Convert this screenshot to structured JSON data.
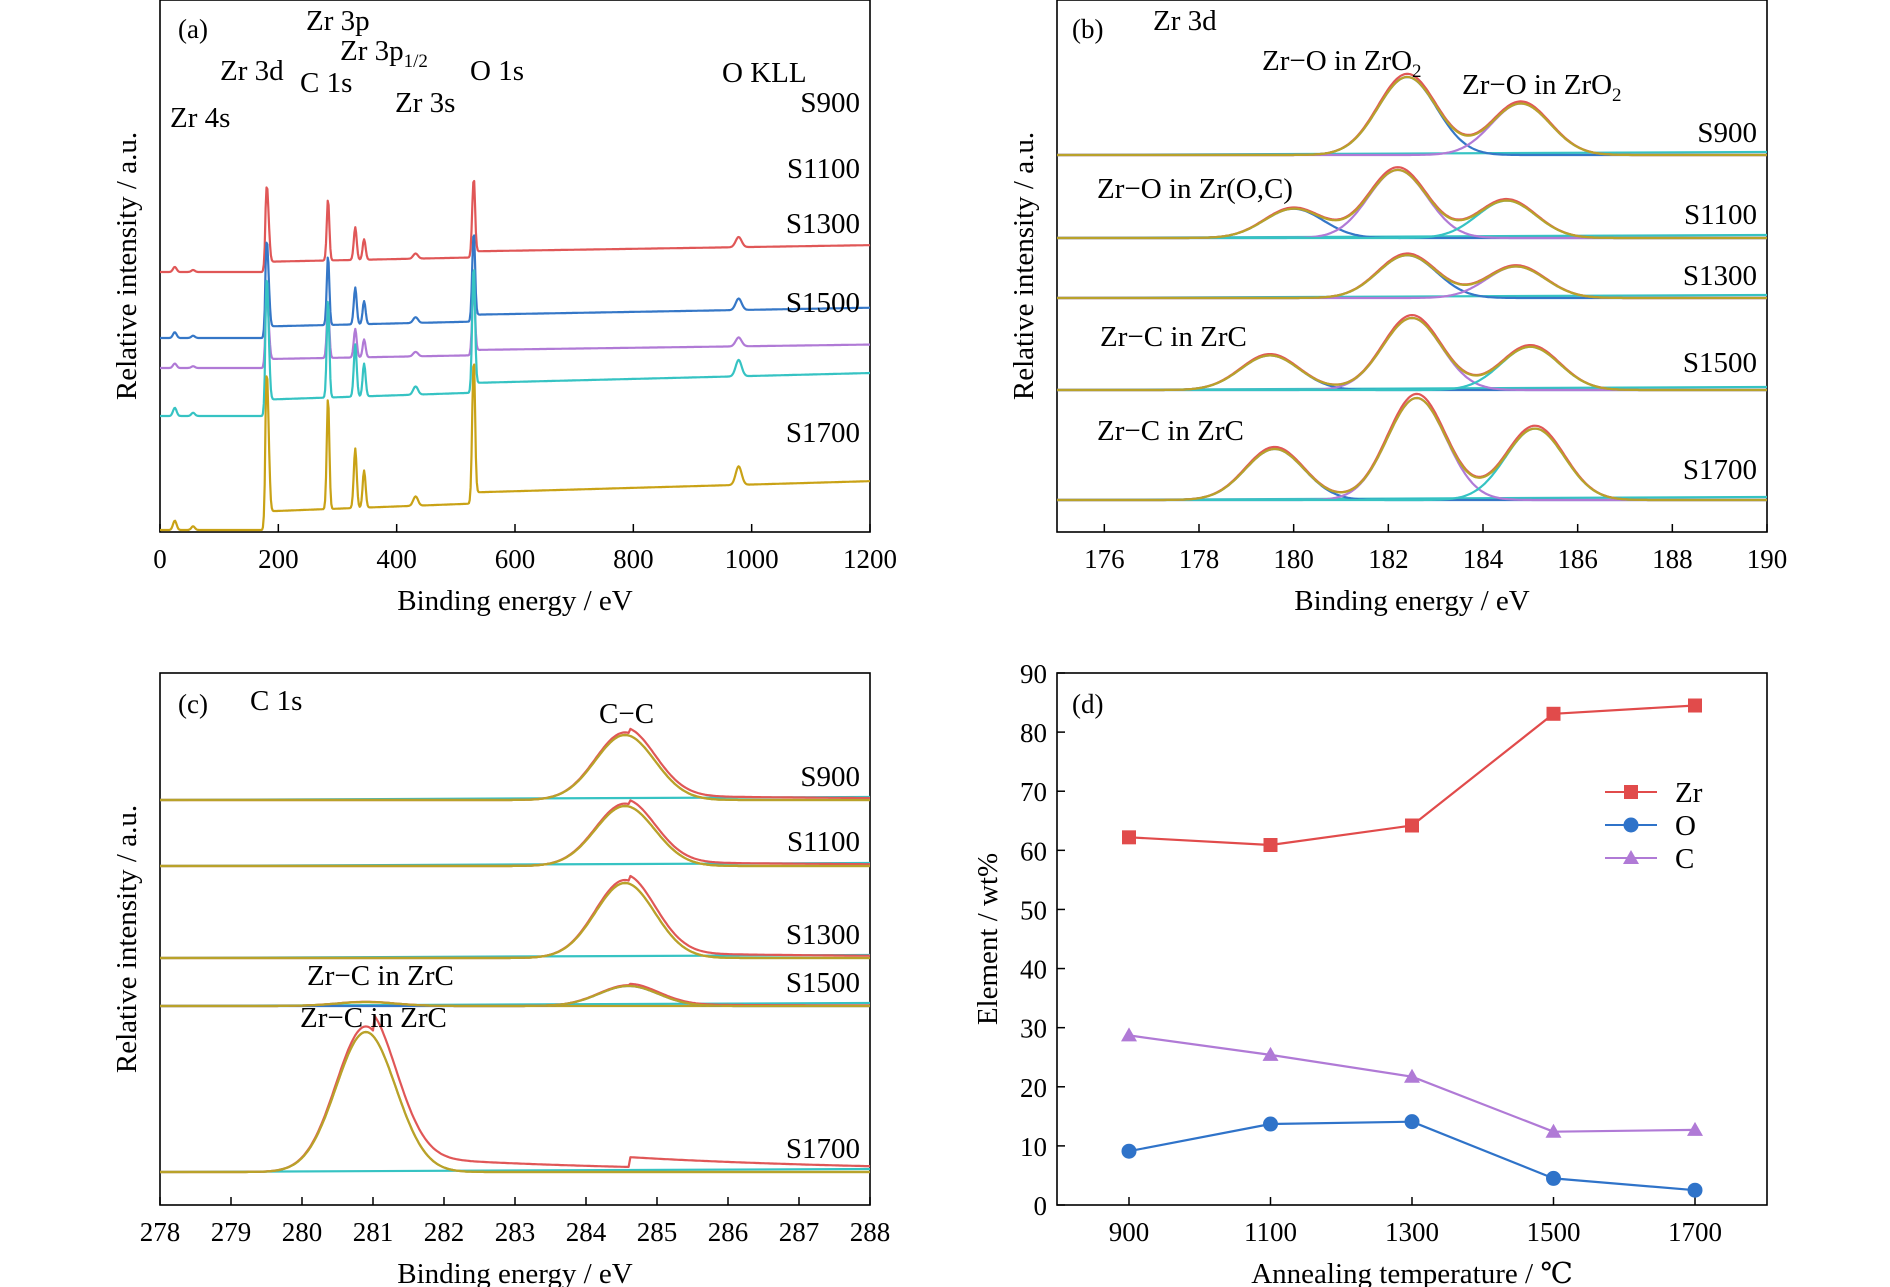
{
  "chart_data": [
    {
      "panel": "(a)",
      "type": "line",
      "xlabel": "Binding energy / eV",
      "ylabel": "Relative intensity / a.u.",
      "xlim": [
        0,
        1200
      ],
      "xticks": [
        "0",
        "200",
        "400",
        "600",
        "800",
        "1000",
        "1200"
      ],
      "peak_labels": [
        {
          "text": "Zr 4s",
          "x": 25
        },
        {
          "text": "Zr 3d",
          "x": 180
        },
        {
          "text": "C 1s",
          "x": 284
        },
        {
          "text": "Zr 3p",
          "x": 330
        },
        {
          "text": "Zr 3p",
          "sub": "1/2",
          "x": 345
        },
        {
          "text": "Zr 3s",
          "x": 432
        },
        {
          "text": "O 1s",
          "x": 530
        },
        {
          "text": "O KLL",
          "x": 978
        }
      ],
      "series": [
        {
          "name": "S900",
          "color": "#e05757",
          "offset": 0.86,
          "scale": 0.55
        },
        {
          "name": "S1100",
          "color": "#3577c7",
          "offset": 0.64,
          "scale": 0.62
        },
        {
          "name": "S1300",
          "color": "#b07ad6",
          "offset": 0.54,
          "scale": 0.48
        },
        {
          "name": "S1500",
          "color": "#36c3c3",
          "offset": 0.38,
          "scale": 0.88
        },
        {
          "name": "S1700",
          "color": "#c9a216",
          "offset": 0.0,
          "scale": 1.0
        }
      ],
      "peaks_eV": [
        25,
        56,
        180,
        183,
        284,
        330,
        345,
        432,
        530,
        978
      ]
    },
    {
      "panel": "(b)",
      "type": "line",
      "title": "Zr 3d",
      "xlabel": "Binding energy / eV",
      "ylabel": "Relative intensity / a.u.",
      "xlim": [
        175,
        190
      ],
      "xticks": [
        "176",
        "178",
        "180",
        "182",
        "184",
        "186",
        "188",
        "190"
      ],
      "series": [
        {
          "name": "S900",
          "components": [
            {
              "center": 182.4,
              "height": 1.0
            },
            {
              "center": 184.8,
              "height": 0.66
            }
          ]
        },
        {
          "name": "S1100",
          "components": [
            {
              "center": 180.0,
              "height": 0.43
            },
            {
              "center": 182.2,
              "height": 1.0
            },
            {
              "center": 184.5,
              "height": 0.55
            }
          ]
        },
        {
          "name": "S1300",
          "components": [
            {
              "center": 182.4,
              "height": 0.95
            },
            {
              "center": 184.7,
              "height": 0.7
            }
          ]
        },
        {
          "name": "S1500",
          "components": [
            {
              "center": 179.5,
              "height": 0.48
            },
            {
              "center": 182.5,
              "height": 1.0
            },
            {
              "center": 185.0,
              "height": 0.6
            }
          ]
        },
        {
          "name": "S1700",
          "components": [
            {
              "center": 179.6,
              "height": 0.5
            },
            {
              "center": 182.6,
              "height": 1.0
            },
            {
              "center": 185.1,
              "height": 0.7
            }
          ]
        }
      ],
      "annotations": [
        {
          "text": "Zr−O in ZrO",
          "sub": "2"
        },
        {
          "text": "Zr−O in ZrO",
          "sub": "2"
        },
        {
          "text": "Zr−O in Zr(O,C)"
        },
        {
          "text": "Zr−C in ZrC"
        },
        {
          "text": "Zr−C in ZrC"
        }
      ]
    },
    {
      "panel": "(c)",
      "type": "line",
      "title": "C 1s",
      "xlabel": "Binding energy / eV",
      "ylabel": "Relative intensity / a.u.",
      "xlim": [
        278,
        288
      ],
      "xticks": [
        "278",
        "279",
        "280",
        "281",
        "282",
        "283",
        "284",
        "285",
        "286",
        "287",
        "288"
      ],
      "series": [
        {
          "name": "S900",
          "components": [
            {
              "center": 284.55,
              "height": 1.0
            }
          ]
        },
        {
          "name": "S1100",
          "components": [
            {
              "center": 284.55,
              "height": 1.0
            }
          ]
        },
        {
          "name": "S1300",
          "components": [
            {
              "center": 284.55,
              "height": 1.0
            }
          ]
        },
        {
          "name": "S1500",
          "components": [
            {
              "center": 280.9,
              "height": 0.2
            },
            {
              "center": 284.6,
              "height": 1.0
            }
          ]
        },
        {
          "name": "S1700",
          "components": [
            {
              "center": 280.9,
              "height": 1.0
            }
          ]
        }
      ],
      "annotations": [
        {
          "text": "C−C"
        },
        {
          "text": "Zr−C in ZrC"
        },
        {
          "text": "Zr−C in ZrC"
        }
      ]
    },
    {
      "panel": "(d)",
      "type": "line",
      "xlabel": "Annealing temperature / ℃",
      "ylabel": "Element / wt%",
      "x": [
        900,
        1100,
        1300,
        1500,
        1700
      ],
      "xticks": [
        "900",
        "1100",
        "1300",
        "1500",
        "1700"
      ],
      "ylim": [
        0,
        90
      ],
      "yticks": [
        "0",
        "10",
        "20",
        "30",
        "40",
        "50",
        "60",
        "70",
        "80",
        "90"
      ],
      "legend_position": "right",
      "series": [
        {
          "name": "Zr",
          "marker": "square",
          "color": "#e14b4b",
          "values": [
            62.2,
            60.9,
            64.2,
            83.1,
            84.5
          ]
        },
        {
          "name": "O",
          "marker": "circle",
          "color": "#2f73c9",
          "values": [
            9.1,
            13.7,
            14.1,
            4.5,
            2.5
          ]
        },
        {
          "name": "C",
          "marker": "triangle",
          "color": "#b07ad6",
          "values": [
            28.7,
            25.4,
            21.7,
            12.4,
            12.7
          ]
        }
      ]
    }
  ]
}
